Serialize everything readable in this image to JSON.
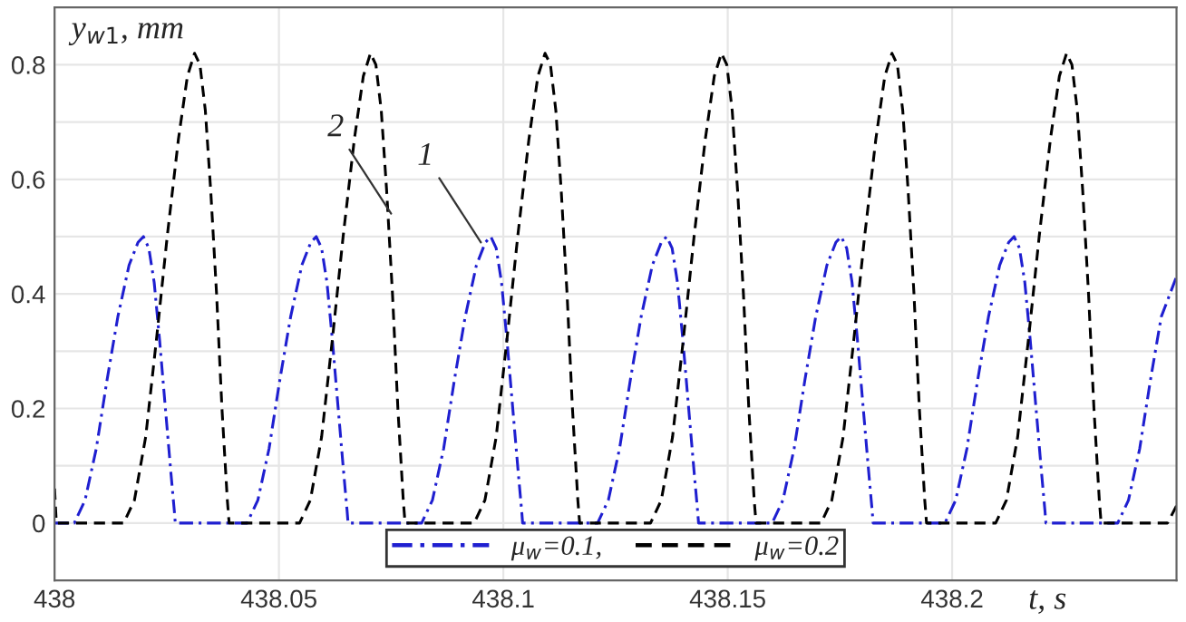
{
  "chart_data": {
    "type": "line",
    "xlabel": "t, s",
    "ylabel": "y$_{w1}$, mm",
    "xlim": [
      438,
      438.25
    ],
    "ylim": [
      -0.1,
      0.9
    ],
    "xticks": [
      438,
      438.05,
      438.1,
      438.15,
      438.2
    ],
    "yticks": [
      0,
      {
        "value": 0.1,
        "label": null
      },
      0.2,
      {
        "value": 0.3,
        "label": null
      },
      0.4,
      {
        "value": 0.5,
        "label": null
      },
      0.6,
      {
        "value": 0.7,
        "label": null
      },
      0.8
    ],
    "grid": true,
    "legend": "bottom",
    "marker": "none",
    "annotations": [
      {
        "text": "1",
        "x": 438.095,
        "y": 0.49
      },
      {
        "text": "2",
        "x": 438.075,
        "y": 0.54
      }
    ],
    "series": [
      {
        "name": "μ$_{w}$=0.1,",
        "color": "#1f1fd0",
        "line_style": "dashdot",
        "x": [
          438.0,
          438.0044,
          438.0068,
          438.0093,
          438.0117,
          438.0141,
          438.0166,
          438.0186,
          438.0198,
          438.021,
          438.0222,
          438.0234,
          438.0247,
          438.0259,
          438.0267,
          438.0269,
          438.0429,
          438.0453,
          438.0478,
          438.0502,
          438.0526,
          438.0551,
          438.0571,
          438.0583,
          438.0595,
          438.0607,
          438.0619,
          438.0632,
          438.0644,
          438.0652,
          438.0654,
          438.0818,
          438.0842,
          438.0867,
          438.0891,
          438.0915,
          438.094,
          438.096,
          438.0972,
          438.0984,
          438.0996,
          438.1008,
          438.1021,
          438.1033,
          438.1041,
          438.1043,
          438.121,
          438.1234,
          438.1259,
          438.1283,
          438.1307,
          438.1332,
          438.1352,
          438.1364,
          438.1376,
          438.1388,
          438.14,
          438.1413,
          438.1425,
          438.1433,
          438.1435,
          438.1599,
          438.1623,
          438.1648,
          438.1672,
          438.1696,
          438.1721,
          438.1741,
          438.1753,
          438.1765,
          438.1777,
          438.1789,
          438.1802,
          438.1814,
          438.1822,
          438.1824,
          438.1984,
          438.2008,
          438.2033,
          438.2057,
          438.2081,
          438.2106,
          438.2126,
          438.2138,
          438.215,
          438.2162,
          438.2174,
          438.2187,
          438.2199,
          438.2207,
          438.2209,
          438.2369,
          438.2393,
          438.2418,
          438.2442,
          438.2466,
          438.25
        ],
        "values": [
          0,
          0,
          0.04,
          0.13,
          0.25,
          0.36,
          0.45,
          0.49,
          0.5,
          0.48,
          0.42,
          0.32,
          0.2,
          0.09,
          0.02,
          0,
          0,
          0.04,
          0.13,
          0.25,
          0.36,
          0.45,
          0.49,
          0.5,
          0.48,
          0.42,
          0.32,
          0.2,
          0.09,
          0.02,
          0,
          0,
          0.04,
          0.13,
          0.25,
          0.36,
          0.45,
          0.49,
          0.5,
          0.48,
          0.42,
          0.32,
          0.2,
          0.09,
          0.02,
          0,
          0,
          0.04,
          0.13,
          0.25,
          0.36,
          0.45,
          0.49,
          0.5,
          0.48,
          0.42,
          0.32,
          0.2,
          0.09,
          0.02,
          0,
          0,
          0.04,
          0.13,
          0.25,
          0.36,
          0.45,
          0.49,
          0.5,
          0.48,
          0.42,
          0.32,
          0.2,
          0.09,
          0.02,
          0,
          0,
          0.04,
          0.13,
          0.25,
          0.36,
          0.45,
          0.49,
          0.5,
          0.48,
          0.42,
          0.32,
          0.2,
          0.09,
          0.02,
          0,
          0,
          0.04,
          0.13,
          0.25,
          0.36,
          0.43
        ]
      },
      {
        "name": "μ$_{w}$=0.2",
        "color": "#000000",
        "line_style": "dashed",
        "x": [
          438.0,
          438.0004,
          438.0154,
          438.0178,
          438.0203,
          438.0227,
          438.0251,
          438.0276,
          438.0296,
          438.0312,
          438.0324,
          438.0336,
          438.0348,
          438.0361,
          438.0373,
          438.0385,
          438.0389,
          438.0546,
          438.057,
          438.0595,
          438.0619,
          438.0643,
          438.0668,
          438.0688,
          438.0704,
          438.0716,
          438.0728,
          438.074,
          438.0753,
          438.0765,
          438.0777,
          438.0781,
          438.0935,
          438.0959,
          438.0984,
          438.1008,
          438.1032,
          438.1057,
          438.1077,
          438.1093,
          438.1105,
          438.1117,
          438.1129,
          438.1142,
          438.1154,
          438.1166,
          438.117,
          438.1328,
          438.1352,
          438.1377,
          438.1401,
          438.1425,
          438.145,
          438.147,
          438.1486,
          438.1498,
          438.151,
          438.1522,
          438.1535,
          438.1547,
          438.1559,
          438.1563,
          438.1708,
          438.1732,
          438.1757,
          438.1781,
          438.1805,
          438.183,
          438.185,
          438.1866,
          438.1878,
          438.189,
          438.1902,
          438.1915,
          438.1927,
          438.1939,
          438.1943,
          438.2097,
          438.2121,
          438.2146,
          438.217,
          438.2194,
          438.2219,
          438.2239,
          438.2255,
          438.2267,
          438.2279,
          438.2291,
          438.2304,
          438.2316,
          438.2328,
          438.2332,
          438.248,
          438.25
        ],
        "values": [
          0.06,
          0,
          0,
          0.04,
          0.15,
          0.32,
          0.5,
          0.67,
          0.78,
          0.82,
          0.8,
          0.72,
          0.58,
          0.4,
          0.2,
          0.04,
          0,
          0,
          0.04,
          0.15,
          0.32,
          0.5,
          0.67,
          0.78,
          0.82,
          0.8,
          0.72,
          0.58,
          0.4,
          0.2,
          0.04,
          0,
          0,
          0.04,
          0.15,
          0.32,
          0.5,
          0.67,
          0.78,
          0.82,
          0.8,
          0.72,
          0.58,
          0.4,
          0.2,
          0.04,
          0,
          0,
          0.04,
          0.15,
          0.32,
          0.5,
          0.67,
          0.78,
          0.82,
          0.8,
          0.72,
          0.58,
          0.4,
          0.2,
          0.04,
          0,
          0,
          0.04,
          0.15,
          0.32,
          0.5,
          0.67,
          0.78,
          0.82,
          0.8,
          0.72,
          0.58,
          0.4,
          0.2,
          0.04,
          0,
          0,
          0.04,
          0.15,
          0.32,
          0.5,
          0.67,
          0.78,
          0.82,
          0.8,
          0.72,
          0.58,
          0.4,
          0.2,
          0.04,
          0,
          0,
          0.03
        ]
      }
    ]
  }
}
